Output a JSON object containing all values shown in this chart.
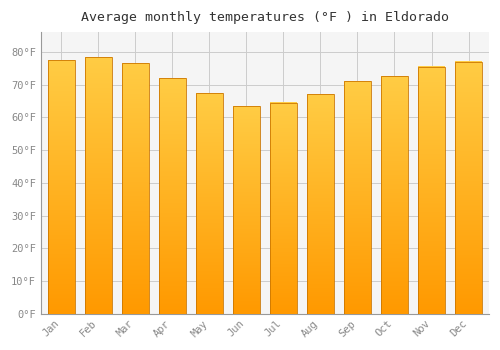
{
  "title": "Average monthly temperatures (°F ) in Eldorado",
  "months": [
    "Jan",
    "Feb",
    "Mar",
    "Apr",
    "May",
    "Jun",
    "Jul",
    "Aug",
    "Sep",
    "Oct",
    "Nov",
    "Dec"
  ],
  "values": [
    77.5,
    78.5,
    76.5,
    72.0,
    67.5,
    63.5,
    64.5,
    67.0,
    71.0,
    72.5,
    75.5,
    77.0
  ],
  "bar_color_top": "#FFCC44",
  "bar_color_bottom": "#FF9900",
  "bar_edge_color": "#CC7700",
  "background_color": "#FFFFFF",
  "plot_bg_color": "#F5F5F5",
  "grid_color": "#CCCCCC",
  "ytick_labels": [
    "0°F",
    "10°F",
    "20°F",
    "30°F",
    "40°F",
    "50°F",
    "60°F",
    "70°F",
    "80°F"
  ],
  "ytick_values": [
    0,
    10,
    20,
    30,
    40,
    50,
    60,
    70,
    80
  ],
  "ylim": [
    0,
    86
  ],
  "title_fontsize": 9.5,
  "tick_fontsize": 7.5,
  "title_color": "#333333",
  "tick_color": "#888888",
  "bar_width": 0.72
}
